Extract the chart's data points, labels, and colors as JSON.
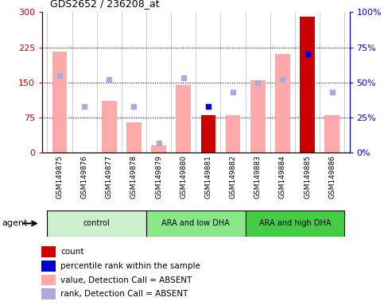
{
  "title": "GDS2652 / 236208_at",
  "samples": [
    "GSM149875",
    "GSM149876",
    "GSM149877",
    "GSM149878",
    "GSM149879",
    "GSM149880",
    "GSM149881",
    "GSM149882",
    "GSM149883",
    "GSM149884",
    "GSM149885",
    "GSM149886"
  ],
  "groups_info": [
    {
      "label": "control",
      "start": 0,
      "end": 3,
      "color": "#ccf0cc"
    },
    {
      "label": "ARA and low DHA",
      "start": 4,
      "end": 7,
      "color": "#88e888"
    },
    {
      "label": "ARA and high DHA",
      "start": 8,
      "end": 11,
      "color": "#44cc44"
    }
  ],
  "bar_values": [
    215,
    0,
    110,
    65,
    15,
    145,
    80,
    80,
    155,
    210,
    290,
    80
  ],
  "bar_colors": [
    "#ffaaaa",
    "#ffaaaa",
    "#ffaaaa",
    "#ffaaaa",
    "#ffaaaa",
    "#ffaaaa",
    "#cc0000",
    "#ffaaaa",
    "#ffaaaa",
    "#ffaaaa",
    "#cc0000",
    "#ffaaaa"
  ],
  "rank_dots_y_right_scale": [
    55,
    33,
    52,
    33,
    7,
    53,
    33,
    43,
    50,
    52,
    70,
    43
  ],
  "rank_dots_absent": [
    true,
    true,
    true,
    true,
    true,
    true,
    false,
    true,
    true,
    true,
    false,
    true
  ],
  "ylim_left": [
    0,
    300
  ],
  "ylim_right": [
    0,
    100
  ],
  "yticks_left": [
    0,
    75,
    150,
    225,
    300
  ],
  "yticks_right": [
    0,
    25,
    50,
    75,
    100
  ],
  "ytick_labels_left": [
    "0",
    "75",
    "150",
    "225",
    "300"
  ],
  "ytick_labels_right": [
    "0%",
    "25%",
    "50%",
    "75%",
    "100%"
  ],
  "hlines": [
    75,
    150,
    225
  ],
  "left_axis_color": "#cc0000",
  "right_axis_color": "#0000cc",
  "legend_labels": [
    "count",
    "percentile rank within the sample",
    "value, Detection Call = ABSENT",
    "rank, Detection Call = ABSENT"
  ],
  "legend_colors": [
    "#cc0000",
    "#0000cc",
    "#ffaaaa",
    "#aaaadd"
  ],
  "agent_label": "agent",
  "bar_width": 0.6
}
